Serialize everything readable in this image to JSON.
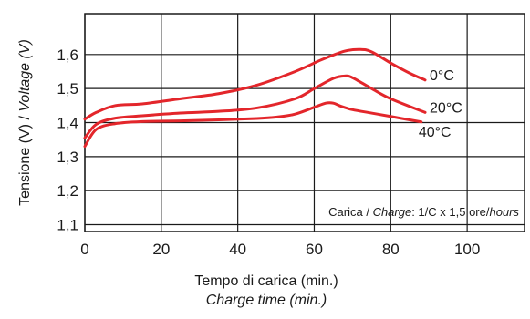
{
  "chart_data": {
    "type": "line",
    "xlabel": "Tempo di carica (min.)",
    "xlabel_secondary": "Charge time (min.)",
    "ylabel": "Tensione (V)",
    "ylabel_separator": " / ",
    "ylabel_secondary": "Voltage (V)",
    "xlim": [
      0,
      115
    ],
    "ylim": [
      1.08,
      1.72
    ],
    "xticks": [
      0,
      20,
      40,
      60,
      80,
      100
    ],
    "xtick_labels": [
      "0",
      "20",
      "40",
      "60",
      "80",
      "100"
    ],
    "yticks": [
      1.1,
      1.2,
      1.3,
      1.4,
      1.5,
      1.6
    ],
    "ytick_labels": [
      "1,1",
      "1,2",
      "1,3",
      "1,4",
      "1,5",
      "1,6"
    ],
    "x_gridlines": [
      0,
      20,
      40,
      60,
      80,
      100
    ],
    "y_gridlines": [
      1.1,
      1.2,
      1.3,
      1.4,
      1.5,
      1.6
    ],
    "grid": true,
    "line_color": "#e3262b",
    "annotation": {
      "parts": [
        {
          "text": "Carica / ",
          "italic": false
        },
        {
          "text": "Charge",
          "italic": true
        },
        {
          "text": ": 1/C x 1,5 ore/",
          "italic": false
        },
        {
          "text": "hours",
          "italic": true
        }
      ]
    },
    "series": [
      {
        "name": "0°C",
        "x": [
          0,
          3,
          8,
          15,
          25,
          35,
          45,
          55,
          62,
          68,
          72,
          75,
          80,
          85,
          89
        ],
        "y": [
          1.41,
          1.43,
          1.45,
          1.455,
          1.47,
          1.485,
          1.51,
          1.55,
          1.585,
          1.61,
          1.615,
          1.608,
          1.575,
          1.545,
          1.525
        ]
      },
      {
        "name": "20°C",
        "x": [
          0,
          3,
          8,
          15,
          25,
          35,
          45,
          55,
          60,
          65,
          68,
          70,
          75,
          80,
          89
        ],
        "y": [
          1.355,
          1.395,
          1.413,
          1.42,
          1.428,
          1.433,
          1.443,
          1.47,
          1.5,
          1.53,
          1.537,
          1.532,
          1.5,
          1.47,
          1.43
        ]
      },
      {
        "name": "40°C",
        "x": [
          0,
          3,
          8,
          15,
          25,
          35,
          45,
          50,
          55,
          60,
          63,
          65,
          67,
          70,
          75,
          80,
          88
        ],
        "y": [
          1.33,
          1.38,
          1.397,
          1.403,
          1.405,
          1.408,
          1.412,
          1.416,
          1.425,
          1.445,
          1.457,
          1.457,
          1.448,
          1.438,
          1.428,
          1.418,
          1.402
        ]
      }
    ]
  }
}
